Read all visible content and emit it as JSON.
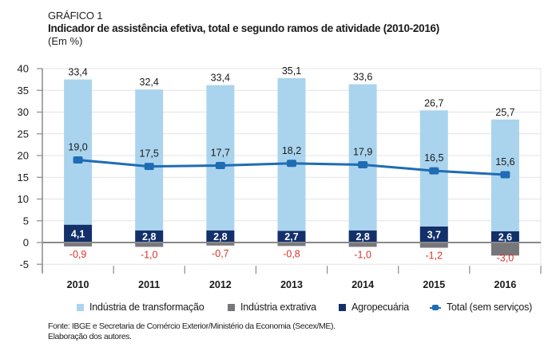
{
  "header": {
    "label": "GRÁFICO 1",
    "title": "Indicador de assistência efetiva, total e segundo ramos de atividade (2010-2016)",
    "unit": "(Em %)"
  },
  "footer": {
    "source": "Fonte: IBGE e Secretaria de Comércio Exterior/Ministério da Economia (Secex/ME).",
    "note": "Elaboração dos autores."
  },
  "chart_data": {
    "type": "bar",
    "subtype": "stacked bar with line",
    "title": "Indicador de assistência efetiva, total e segundo ramos de atividade (2010-2016)",
    "subtitle": "(Em %)",
    "xlabel": "",
    "ylabel": "",
    "ylim": [
      -5,
      40
    ],
    "yticks": [
      -5,
      0,
      5,
      10,
      15,
      20,
      25,
      30,
      35,
      40
    ],
    "ytick_labels": [
      "-5",
      "0",
      "5",
      "10",
      "15",
      "20",
      "25",
      "30",
      "35",
      "40"
    ],
    "grid": true,
    "legend_position": "bottom",
    "categories": [
      "2010",
      "2011",
      "2012",
      "2013",
      "2014",
      "2015",
      "2016"
    ],
    "series": [
      {
        "name": "Agropecuária",
        "kind": "bar",
        "color": "#13306b",
        "values": [
          4.1,
          2.8,
          2.8,
          2.7,
          2.8,
          3.7,
          2.6
        ],
        "labels": [
          "4,1",
          "2,8",
          "2,8",
          "2,7",
          "2,8",
          "3,7",
          "2,6"
        ],
        "label_color": "#ffffff"
      },
      {
        "name": "Indústria de transformação",
        "kind": "bar",
        "color": "#aad4ee",
        "values": [
          33.4,
          32.4,
          33.4,
          35.1,
          33.6,
          26.7,
          25.7
        ],
        "labels": [
          "33,4",
          "32,4",
          "33,4",
          "35,1",
          "33,6",
          "26,7",
          "25,7"
        ],
        "label_color": "#1a1a1a"
      },
      {
        "name": "Indústria extrativa",
        "kind": "bar",
        "color": "#77777b",
        "values": [
          -0.9,
          -1.0,
          -0.7,
          -0.8,
          -1.0,
          -1.2,
          -3.0
        ],
        "labels": [
          "-0,9",
          "-1,0",
          "-0,7",
          "-0,8",
          "-1,0",
          "-1,2",
          "-3,0"
        ],
        "label_color": "#e0312b"
      },
      {
        "name": "Total (sem serviços)",
        "kind": "line",
        "color": "#1f6cb3",
        "values": [
          19.0,
          17.5,
          17.7,
          18.2,
          17.9,
          16.5,
          15.6
        ],
        "labels": [
          "19,0",
          "17,5",
          "17,7",
          "18,2",
          "17,9",
          "16,5",
          "15,6"
        ],
        "label_color": "#1a1a1a"
      }
    ],
    "legend": [
      {
        "name": "Indústria de transformação",
        "color": "#aad4ee",
        "marker": "square"
      },
      {
        "name": "Indústria extrativa",
        "color": "#77777b",
        "marker": "square"
      },
      {
        "name": "Agropecuária",
        "color": "#13306b",
        "marker": "square"
      },
      {
        "name": "Total (sem serviços)",
        "color": "#1f6cb3",
        "marker": "line"
      }
    ]
  }
}
